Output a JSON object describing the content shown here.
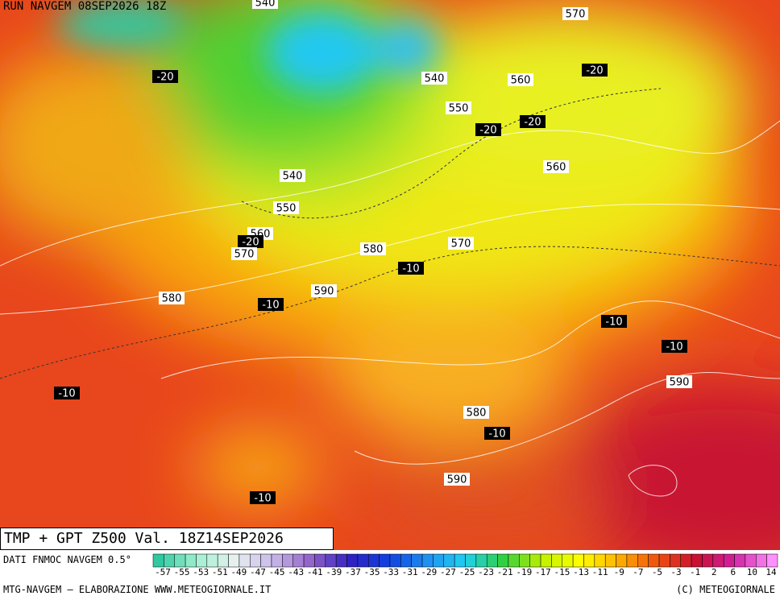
{
  "header": {
    "run": "RUN NAVGEM 08SEP2026 18Z"
  },
  "map": {
    "contour_labels": [
      "540",
      "570",
      "-20",
      "-20",
      "540",
      "560",
      "550",
      "-20",
      "-20",
      "540",
      "560",
      "550",
      "560",
      "-20",
      "570",
      "580",
      "570",
      "-10",
      "590",
      "580",
      "-10",
      "-10",
      "-10",
      "590",
      "-10",
      "580",
      "-10",
      "590",
      "-10"
    ]
  },
  "title": "TMP + GPT Z500 Val. 18Z14SEP2026",
  "source": "DATI FNMOC NAVGEM 0.5°",
  "colorbar": {
    "labels": [
      "-57",
      "-55",
      "-53",
      "-51",
      "-49",
      "-47",
      "-45",
      "-43",
      "-41",
      "-39",
      "-37",
      "-35",
      "-33",
      "-31",
      "-29",
      "-27",
      "-25",
      "-23",
      "-21",
      "-19",
      "-17",
      "-15",
      "-13",
      "-11",
      "-9",
      "-7",
      "-5",
      "-3",
      "-1",
      "2",
      "6",
      "10",
      "14"
    ]
  },
  "footer": {
    "left": "MTG-NAVGEM – ELABORAZIONE WWW.METEOGIORNALE.IT",
    "right": "(C) METEOGIORNALE"
  }
}
